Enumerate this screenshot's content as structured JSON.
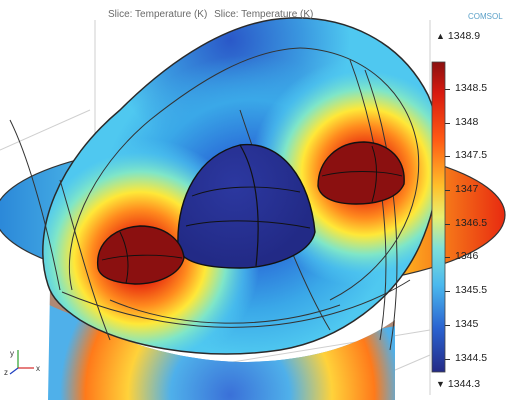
{
  "plot_title": [
    "Slice: Temperature (K)",
    "Slice: Temperature (K)"
  ],
  "logo_text": "COMSOL",
  "colorbar": {
    "max_label": "1348.9",
    "min_label": "1344.3",
    "ticks": [
      "1348.5",
      "1348",
      "1347.5",
      "1347",
      "1346.5",
      "1346",
      "1345.5",
      "1345",
      "1344.5"
    ],
    "tick_values": [
      1348.5,
      1348,
      1347.5,
      1347,
      1346.5,
      1346,
      1345.5,
      1345,
      1344.5
    ],
    "min_value": 1344.3,
    "max_value": 1348.9
  },
  "axes_labels": {
    "x": "x",
    "y": "y",
    "z": "z"
  },
  "colors": {
    "hot": "#8b1010",
    "cold": "#242a86",
    "mid": "#4fc8f0"
  }
}
